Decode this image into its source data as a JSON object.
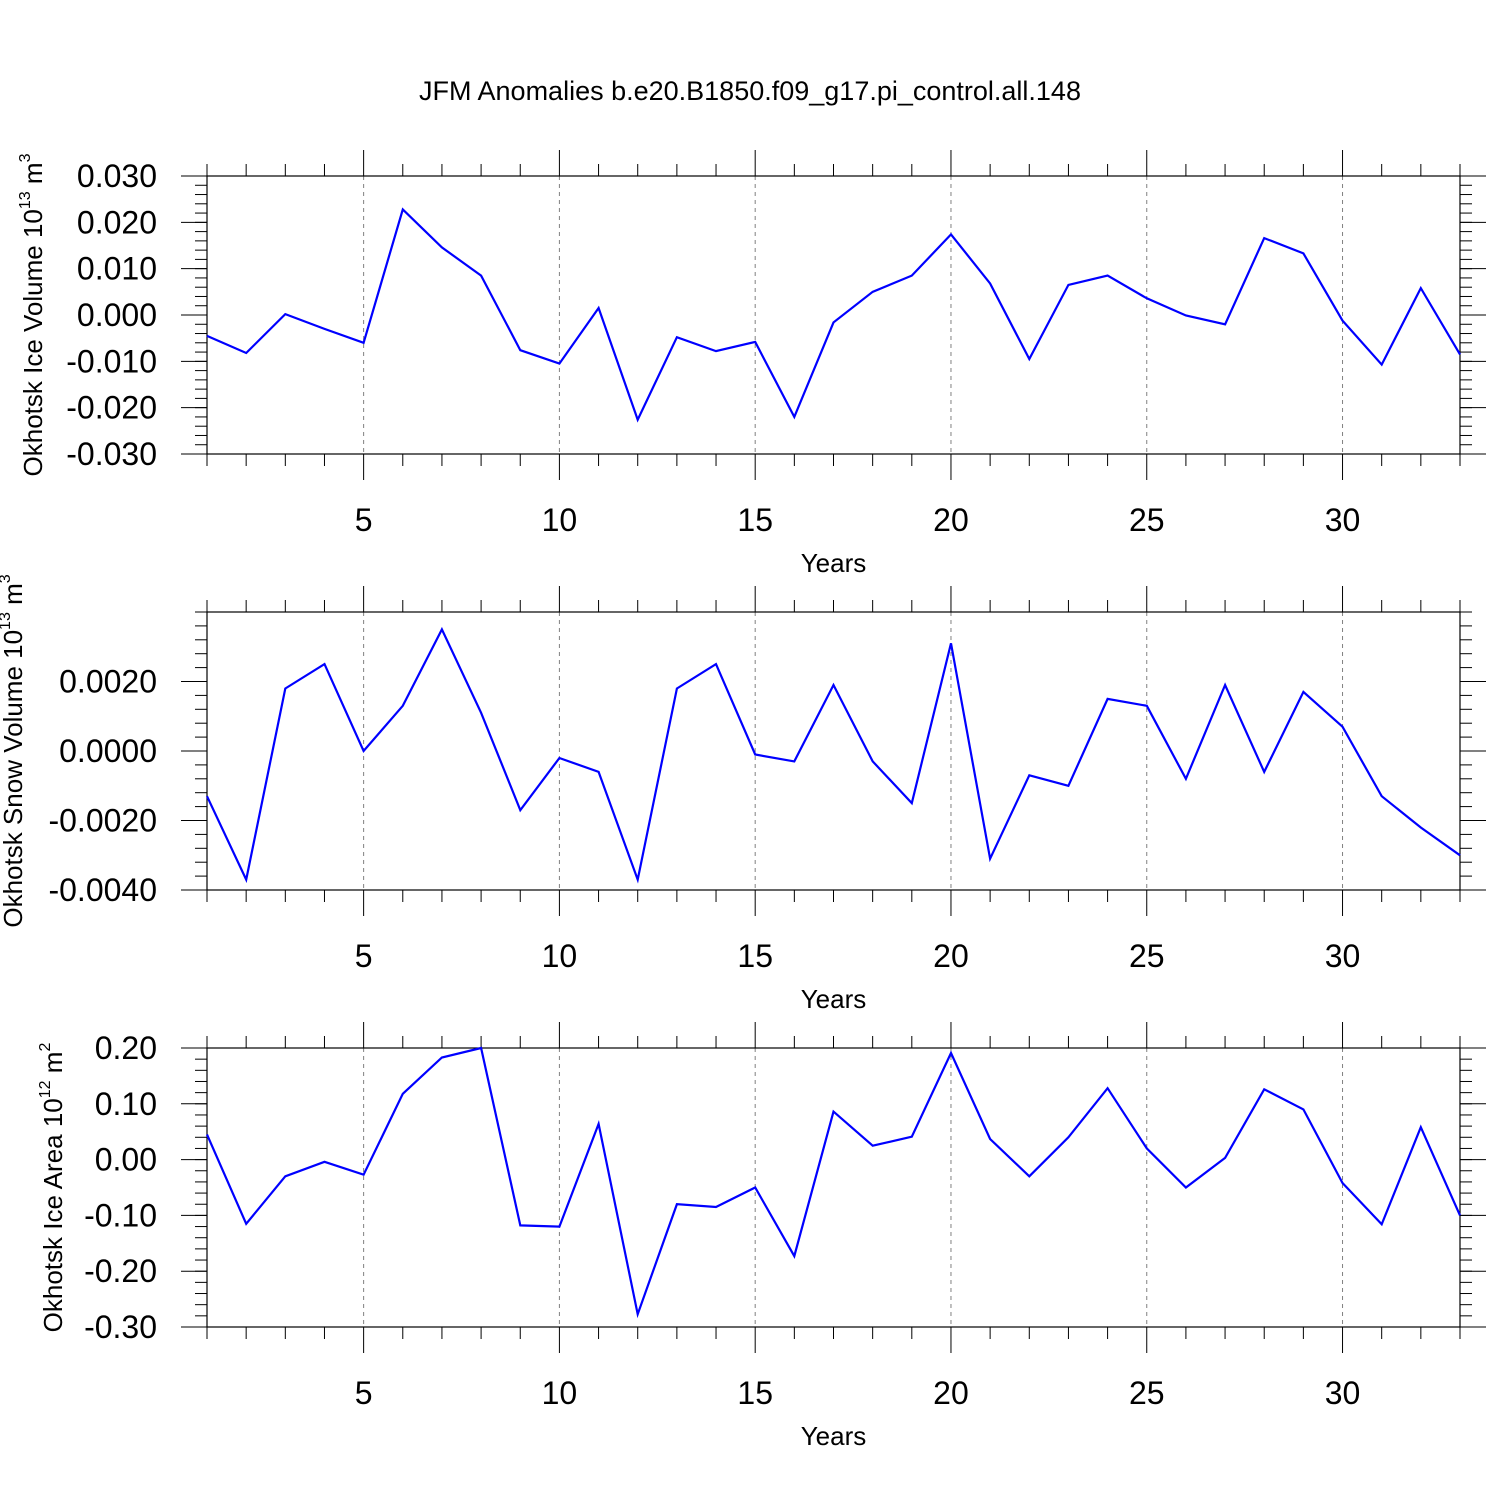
{
  "figure": {
    "title": "JFM Anomalies b.e20.B1850.f09_g17.pi_control.all.148",
    "line_color": "#0000ff",
    "frame_color": "#000000",
    "grid_color": "#808080"
  },
  "chart_data": [
    {
      "type": "line",
      "title": "JFM Anomalies b.e20.B1850.f09_g17.pi_control.all.148",
      "xlabel": "Years",
      "ylabel": {
        "main": "Okhotsk Ice Volume 10",
        "sup1": "13",
        "mid": " m",
        "sup2": "3"
      },
      "xlim": [
        1,
        33
      ],
      "ylim": [
        -0.03,
        0.03
      ],
      "x_ticks": [
        5,
        10,
        15,
        20,
        25,
        30
      ],
      "y_ticks": [
        -0.03,
        -0.02,
        -0.01,
        0.0,
        0.01,
        0.02,
        0.03
      ],
      "y_tick_labels": [
        "-0.030",
        "-0.020",
        "-0.010",
        "0.000",
        "0.010",
        "0.020",
        "0.030"
      ],
      "y_minor_step": 0.002,
      "grid": "vertical dashed at major x ticks",
      "x": [
        1,
        2,
        3,
        4,
        5,
        6,
        7,
        8,
        9,
        10,
        11,
        12,
        13,
        14,
        15,
        16,
        17,
        18,
        19,
        20,
        21,
        22,
        23,
        24,
        25,
        26,
        27,
        28,
        29,
        30,
        31,
        32,
        33
      ],
      "series": [
        {
          "name": "Okhotsk Ice Volume",
          "values": [
            -0.0045,
            -0.0082,
            0.0002,
            -0.003,
            -0.006,
            0.0228,
            0.0146,
            0.0085,
            -0.0076,
            -0.0105,
            0.0015,
            -0.0226,
            -0.0048,
            -0.0078,
            -0.0058,
            -0.022,
            -0.0016,
            0.005,
            0.0085,
            0.0174,
            0.0068,
            -0.0095,
            0.0065,
            0.0085,
            0.0036,
            -0.0001,
            -0.002,
            0.0166,
            0.0133,
            -0.0012,
            -0.0107,
            0.0058,
            -0.0085
          ]
        }
      ]
    },
    {
      "type": "line",
      "xlabel": "Years",
      "ylabel": {
        "main": "Okhotsk Snow Volume 10",
        "sup1": "13",
        "mid": " m",
        "sup2": "3"
      },
      "xlim": [
        1,
        33
      ],
      "ylim": [
        -0.004,
        0.004
      ],
      "x_ticks": [
        5,
        10,
        15,
        20,
        25,
        30
      ],
      "y_ticks": [
        -0.004,
        -0.002,
        0.0,
        0.002
      ],
      "y_tick_labels": [
        "-0.0040",
        "-0.0020",
        "0.0000",
        "0.0020"
      ],
      "y_minor_step": 0.0004,
      "grid": "vertical dashed at major x ticks",
      "x": [
        1,
        2,
        3,
        4,
        5,
        6,
        7,
        8,
        9,
        10,
        11,
        12,
        13,
        14,
        15,
        16,
        17,
        18,
        19,
        20,
        21,
        22,
        23,
        24,
        25,
        26,
        27,
        28,
        29,
        30,
        31,
        32,
        33
      ],
      "series": [
        {
          "name": "Okhotsk Snow Volume",
          "values": [
            -0.0013,
            -0.0037,
            0.0018,
            0.0025,
            -0.0,
            0.0013,
            0.0035,
            0.0011,
            -0.0017,
            -0.0002,
            -0.0006,
            -0.0037,
            0.0018,
            0.0025,
            -0.0001,
            -0.0003,
            0.0019,
            -0.0003,
            -0.0015,
            0.0031,
            -0.0031,
            -0.0007,
            -0.001,
            0.0015,
            0.0013,
            -0.0008,
            0.0019,
            -0.0006,
            0.0017,
            0.0007,
            -0.0013,
            -0.0022,
            -0.003
          ]
        }
      ]
    },
    {
      "type": "line",
      "xlabel": "Years",
      "ylabel": {
        "main": "Okhotsk Ice Area 10",
        "sup1": "12",
        "mid": " m",
        "sup2": "2"
      },
      "xlim": [
        1,
        33
      ],
      "ylim": [
        -0.3,
        0.2
      ],
      "x_ticks": [
        5,
        10,
        15,
        20,
        25,
        30
      ],
      "y_ticks": [
        -0.3,
        -0.2,
        -0.1,
        0.0,
        0.1,
        0.2
      ],
      "y_tick_labels": [
        "-0.30",
        "-0.20",
        "-0.10",
        "0.00",
        "0.10",
        "0.20"
      ],
      "y_minor_step": 0.02,
      "grid": "vertical dashed at major x ticks",
      "x": [
        1,
        2,
        3,
        4,
        5,
        6,
        7,
        8,
        9,
        10,
        11,
        12,
        13,
        14,
        15,
        16,
        17,
        18,
        19,
        20,
        21,
        22,
        23,
        24,
        25,
        26,
        27,
        28,
        29,
        30,
        31,
        32,
        33
      ],
      "series": [
        {
          "name": "Okhotsk Ice Area",
          "values": [
            0.045,
            -0.115,
            -0.03,
            -0.004,
            -0.027,
            0.118,
            0.183,
            0.2,
            -0.118,
            -0.12,
            0.064,
            -0.277,
            -0.08,
            -0.085,
            -0.05,
            -0.173,
            0.086,
            0.025,
            0.041,
            0.191,
            0.037,
            -0.03,
            0.04,
            0.128,
            0.02,
            -0.05,
            0.003,
            0.126,
            0.09,
            -0.042,
            -0.116,
            0.058,
            -0.1
          ]
        }
      ]
    }
  ]
}
